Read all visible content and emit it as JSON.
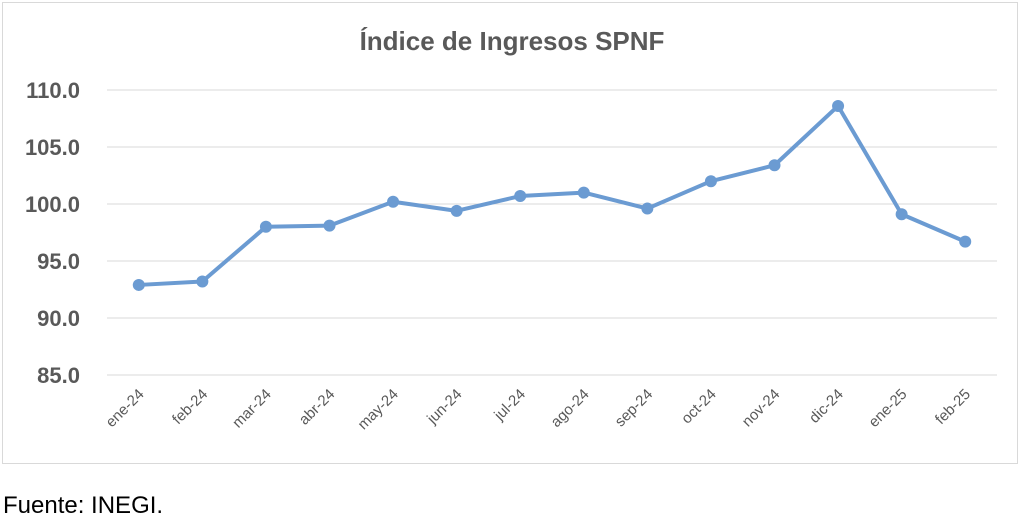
{
  "chart_data": {
    "type": "line",
    "title": "Índice de Ingresos SPNF",
    "categories": [
      "ene-24",
      "feb-24",
      "mar-24",
      "abr-24",
      "may-24",
      "jun-24",
      "jul-24",
      "ago-24",
      "sep-24",
      "oct-24",
      "nov-24",
      "dic-24",
      "ene-25",
      "feb-25"
    ],
    "series": [
      {
        "values": [
          92.9,
          93.2,
          98.0,
          98.1,
          100.2,
          99.4,
          100.7,
          101.0,
          99.6,
          102.0,
          103.4,
          108.6,
          99.1,
          96.7
        ]
      }
    ],
    "yticks": [
      "85.0",
      "90.0",
      "95.0",
      "100.0",
      "105.0",
      "110.0"
    ],
    "ylim": [
      85,
      110
    ],
    "grid": true,
    "line_color": "#6b9bd2",
    "grid_color": "#d9d9d9"
  },
  "source_note": "Fuente: INEGI."
}
